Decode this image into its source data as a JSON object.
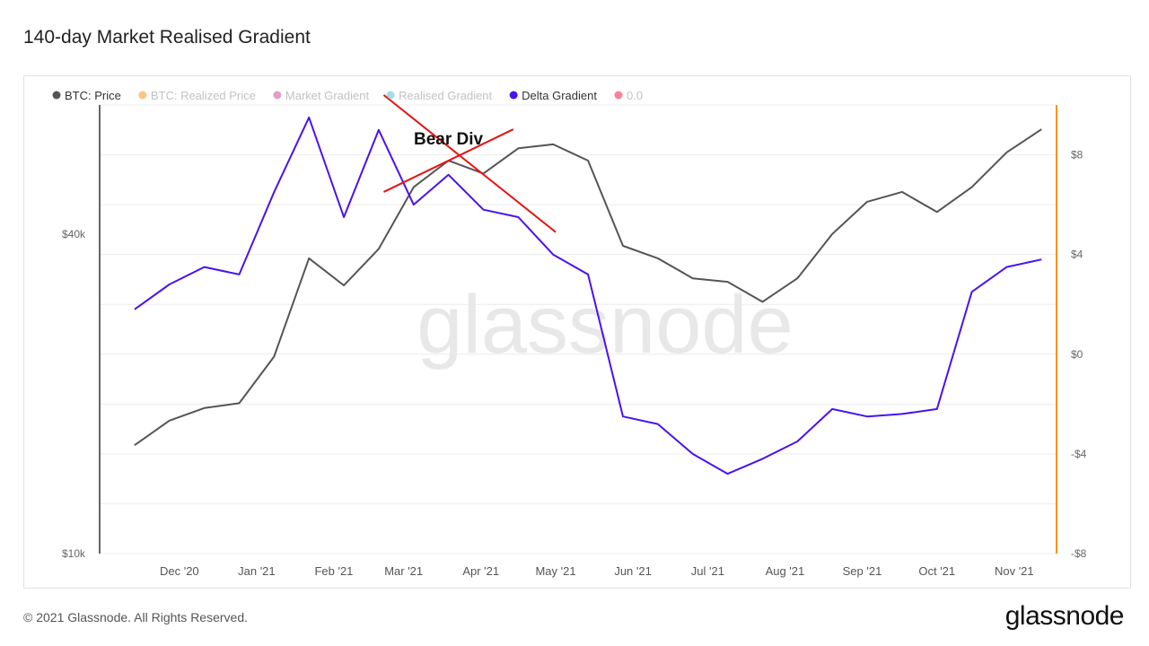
{
  "title": "140-day Market Realised Gradient",
  "watermark": "glassnode",
  "footer": {
    "copyright": "© 2021 Glassnode. All Rights Reserved.",
    "brand": "glassnode"
  },
  "annotation": {
    "text": "Bear Div",
    "color": "#e81212"
  },
  "chart_data": {
    "type": "line",
    "title": "140-day Market Realised Gradient",
    "legend_position": "top-left",
    "grid": true,
    "legend": [
      {
        "name": "BTC: Price",
        "color": "#555555",
        "active": true
      },
      {
        "name": "BTC: Realized Price",
        "color": "#f7931a",
        "active": false
      },
      {
        "name": "Market Gradient",
        "color": "#c64f9a",
        "active": false
      },
      {
        "name": "Realised Gradient",
        "color": "#5bc0d6",
        "active": false
      },
      {
        "name": "Delta Gradient",
        "color": "#4a12f0",
        "active": true
      },
      {
        "name": "0.0",
        "color": "#ff1744",
        "active": false
      }
    ],
    "x_ticks": [
      "Dec '20",
      "Jan '21",
      "Feb '21",
      "Mar '21",
      "Apr '21",
      "May '21",
      "Jun '21",
      "Jul '21",
      "Aug '21",
      "Sep '21",
      "Oct '21",
      "Nov '21"
    ],
    "y_left": {
      "scale": "log",
      "ticks": [
        "$10k",
        "$40k"
      ]
    },
    "y_right": {
      "ticks": [
        "$8",
        "$4",
        "$0",
        "-$4",
        "-$8"
      ],
      "range": [
        -8,
        10
      ]
    },
    "x_dates": [
      "2020-11-13",
      "2020-11-27",
      "2020-12-11",
      "2020-12-25",
      "2021-01-08",
      "2021-01-22",
      "2021-02-05",
      "2021-02-19",
      "2021-03-05",
      "2021-03-19",
      "2021-04-02",
      "2021-04-16",
      "2021-04-30",
      "2021-05-14",
      "2021-05-28",
      "2021-06-11",
      "2021-06-25",
      "2021-07-09",
      "2021-07-23",
      "2021-08-06",
      "2021-08-20",
      "2021-09-03",
      "2021-09-17",
      "2021-10-01",
      "2021-10-15",
      "2021-10-29",
      "2021-11-12"
    ],
    "series": [
      {
        "name": "BTC: Price",
        "color": "#555555",
        "axis": "left",
        "values": [
          16000,
          17800,
          18800,
          19200,
          23500,
          36000,
          32000,
          37500,
          49000,
          55000,
          52000,
          58000,
          59000,
          55000,
          38000,
          36000,
          33000,
          32500,
          29800,
          33000,
          40000,
          46000,
          48000,
          44000,
          49000,
          57000,
          63000
        ]
      },
      {
        "name": "Delta Gradient",
        "color": "#4a12f0",
        "axis": "right",
        "values": [
          1.8,
          2.8,
          3.5,
          3.2,
          6.5,
          9.5,
          5.5,
          9.0,
          6.0,
          7.2,
          5.8,
          5.5,
          4.0,
          3.2,
          -2.5,
          -2.8,
          -4.0,
          -4.8,
          -4.2,
          -3.5,
          -2.2,
          -2.5,
          -2.4,
          -2.2,
          2.5,
          3.5,
          3.8
        ]
      }
    ],
    "annotations": [
      {
        "type": "trendline",
        "from": [
          "2021-02-21",
          10.4
        ],
        "to": [
          "2021-05-01",
          4.9
        ]
      },
      {
        "type": "trendline",
        "from": [
          "2021-02-21",
          48000
        ],
        "to": [
          "2021-04-14",
          63000
        ]
      }
    ]
  }
}
